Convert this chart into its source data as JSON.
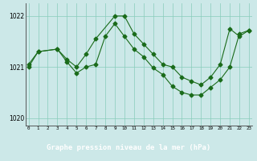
{
  "line1_x": [
    0,
    1,
    3,
    4,
    5,
    6,
    7,
    9,
    10,
    11,
    12,
    13,
    14,
    15,
    16,
    17,
    18,
    19,
    20,
    21,
    22,
    23
  ],
  "line1_y": [
    1021.05,
    1021.3,
    1021.35,
    1021.15,
    1021.0,
    1021.25,
    1021.55,
    1022.0,
    1022.0,
    1021.65,
    1021.45,
    1021.25,
    1021.05,
    1021.0,
    1020.8,
    1020.72,
    1020.65,
    1020.8,
    1021.05,
    1021.75,
    1021.6,
    1021.72
  ],
  "line2_x": [
    0,
    1,
    3,
    4,
    5,
    6,
    7,
    8,
    9,
    10,
    11,
    12,
    13,
    14,
    15,
    16,
    17,
    18,
    19,
    20,
    21,
    22,
    23
  ],
  "line2_y": [
    1021.0,
    1021.3,
    1021.35,
    1021.1,
    1020.88,
    1021.0,
    1021.05,
    1021.6,
    1021.85,
    1021.6,
    1021.35,
    1021.2,
    1020.98,
    1020.85,
    1020.62,
    1020.5,
    1020.45,
    1020.45,
    1020.6,
    1020.75,
    1021.0,
    1021.65,
    1021.72
  ],
  "line_color": "#1a6b1a",
  "marker": "D",
  "marker_size": 2.5,
  "bg_color": "#cce8e8",
  "grid_color": "#88ccbb",
  "xlabel_bg": "#2d6b2d",
  "xlabel": "Graphe pression niveau de la mer (hPa)",
  "xtick_labels": [
    "0",
    "1",
    "2",
    "3",
    "4",
    "5",
    "6",
    "7",
    "8",
    "9",
    "10",
    "11",
    "12",
    "13",
    "14",
    "15",
    "16",
    "17",
    "18",
    "19",
    "20",
    "21",
    "22",
    "23"
  ],
  "xticks": [
    0,
    1,
    2,
    3,
    4,
    5,
    6,
    7,
    8,
    9,
    10,
    11,
    12,
    13,
    14,
    15,
    16,
    17,
    18,
    19,
    20,
    21,
    22,
    23
  ],
  "yticks": [
    1020,
    1021,
    1022
  ],
  "ylim": [
    1019.85,
    1022.25
  ],
  "xlim": [
    -0.3,
    23.3
  ]
}
